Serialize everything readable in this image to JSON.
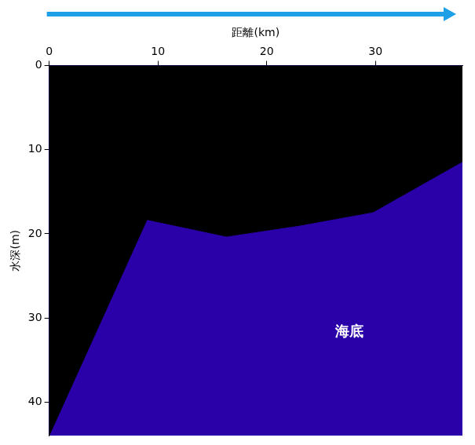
{
  "chart_data": {
    "type": "area",
    "x_label": "距離(km)",
    "y_label": "水深(m)",
    "x": [
      0,
      9,
      16.3,
      23,
      29.8,
      38
    ],
    "series": [
      {
        "values": [
          44,
          18.3,
          20.3,
          19,
          17.4,
          11.4
        ],
        "color": "#000000"
      }
    ],
    "color": "#2a00a8",
    "xlim": [
      0,
      38
    ],
    "xticks": [
      0,
      10,
      20,
      30
    ],
    "ylim": [
      0,
      44
    ],
    "yticks": [
      0,
      10,
      20,
      30,
      40
    ],
    "grid": false,
    "annotations": [
      {
        "text": "海底",
        "x": 27.6,
        "y": 31.7
      }
    ]
  }
}
